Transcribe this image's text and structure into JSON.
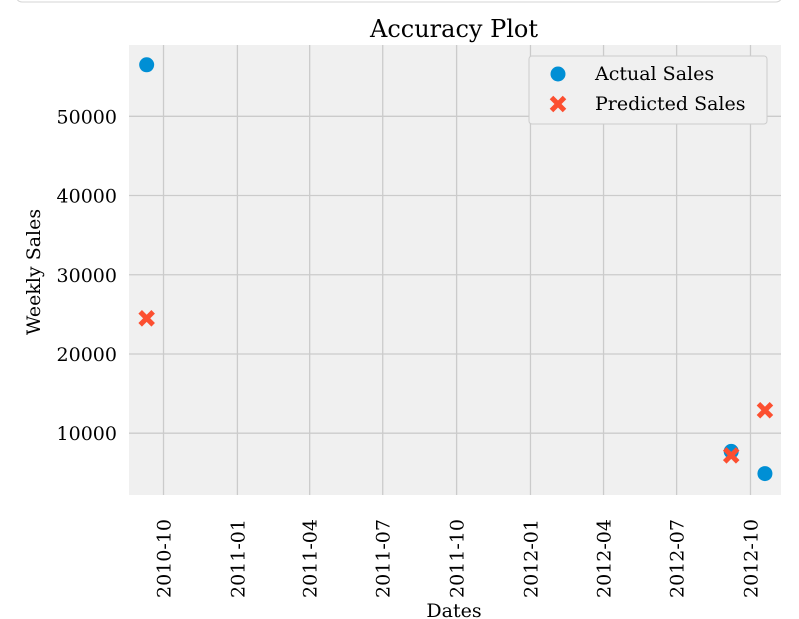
{
  "chart_data": {
    "type": "scatter",
    "title": "Accuracy Plot",
    "xlabel": "Dates",
    "ylabel": "Weekly Sales",
    "x_axis_type": "date",
    "xlim": [
      "2010-08-19",
      "2012-11-08"
    ],
    "ylim": [
      2200,
      59000
    ],
    "x_ticks": [
      "2010-10",
      "2011-01",
      "2011-04",
      "2011-07",
      "2011-10",
      "2012-01",
      "2012-04",
      "2012-07",
      "2012-10"
    ],
    "y_ticks": [
      10000,
      20000,
      30000,
      40000,
      50000
    ],
    "y_tick_labels": [
      "10000",
      "20000",
      "30000",
      "40000",
      "50000"
    ],
    "grid": true,
    "legend_position": "upper right",
    "series": [
      {
        "name": "Actual Sales",
        "marker": "circle",
        "color": "#008fd5",
        "points": [
          {
            "x": "2010-09-10",
            "y": 56500
          },
          {
            "x": "2012-09-07",
            "y": 7700
          },
          {
            "x": "2012-10-19",
            "y": 4900
          }
        ]
      },
      {
        "name": "Predicted Sales",
        "marker": "x",
        "color": "#fc4f30",
        "points": [
          {
            "x": "2010-09-10",
            "y": 24500
          },
          {
            "x": "2012-09-07",
            "y": 7200
          },
          {
            "x": "2012-10-19",
            "y": 12900
          }
        ]
      }
    ]
  },
  "colors": {
    "plot_background": "#f0f0f0",
    "grid": "#cbcbcb",
    "text": "#000000"
  }
}
